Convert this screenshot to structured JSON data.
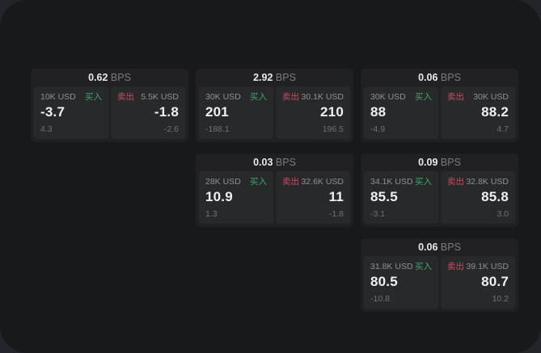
{
  "page": {
    "bg_outer": "#24252a",
    "bg_window": "#18191a",
    "card_bg": "#212123",
    "panel_bg": "#28292b",
    "buy_color": "#3fa869",
    "sell_color": "#cc4b5d"
  },
  "labels": {
    "bps_unit": "BPS",
    "buy": "买入",
    "sell": "卖出"
  },
  "cards": [
    {
      "bps": "0.62",
      "buy": {
        "notional": "10K USD",
        "price": "-3.7",
        "change": "4.3"
      },
      "sell": {
        "notional": "5.5K USD",
        "price": "-1.8",
        "change": "-2.6"
      }
    },
    {
      "bps": "2.92",
      "buy": {
        "notional": "30K USD",
        "price": "201",
        "change": "-188.1"
      },
      "sell": {
        "notional": "30.1K USD",
        "price": "210",
        "change": "196.5"
      }
    },
    {
      "bps": "0.06",
      "buy": {
        "notional": "30K USD",
        "price": "88",
        "change": "-4.9"
      },
      "sell": {
        "notional": "30K USD",
        "price": "88.2",
        "change": "4.7"
      }
    },
    {
      "bps": "0.03",
      "buy": {
        "notional": "28K USD",
        "price": "10.9",
        "change": "1.3"
      },
      "sell": {
        "notional": "32.6K USD",
        "price": "11",
        "change": "-1.8"
      }
    },
    {
      "bps": "0.09",
      "buy": {
        "notional": "34.1K USD",
        "price": "85.5",
        "change": "-3.1"
      },
      "sell": {
        "notional": "32.8K USD",
        "price": "85.8",
        "change": "3.0"
      }
    },
    {
      "bps": "0.06",
      "buy": {
        "notional": "31.8K USD",
        "price": "80.5",
        "change": "-10.8"
      },
      "sell": {
        "notional": "39.1K USD",
        "price": "80.7",
        "change": "10.2"
      }
    }
  ]
}
